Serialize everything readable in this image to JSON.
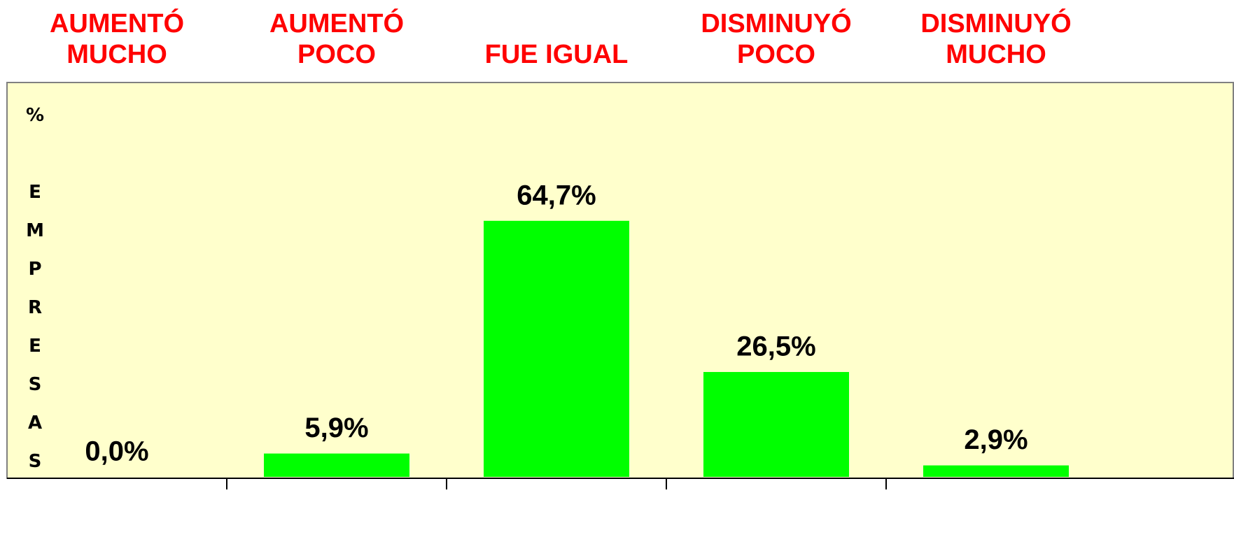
{
  "chart_data": {
    "type": "bar",
    "categories": [
      [
        "AUMENTÓ",
        "MUCHO"
      ],
      [
        "AUMENTÓ",
        "POCO"
      ],
      [
        "FUE IGUAL"
      ],
      [
        "DISMINUYÓ",
        "POCO"
      ],
      [
        "DISMINUYÓ",
        "MUCHO"
      ]
    ],
    "values": [
      0,
      5.9,
      64.7,
      26.5,
      2.9
    ],
    "value_labels": [
      "0,0%",
      "5,9%",
      "64,7%",
      "26,5%",
      "2,9%"
    ],
    "y_label": "% EMPRESAS",
    "color": "#00ff00",
    "background": "#ffffcc"
  }
}
